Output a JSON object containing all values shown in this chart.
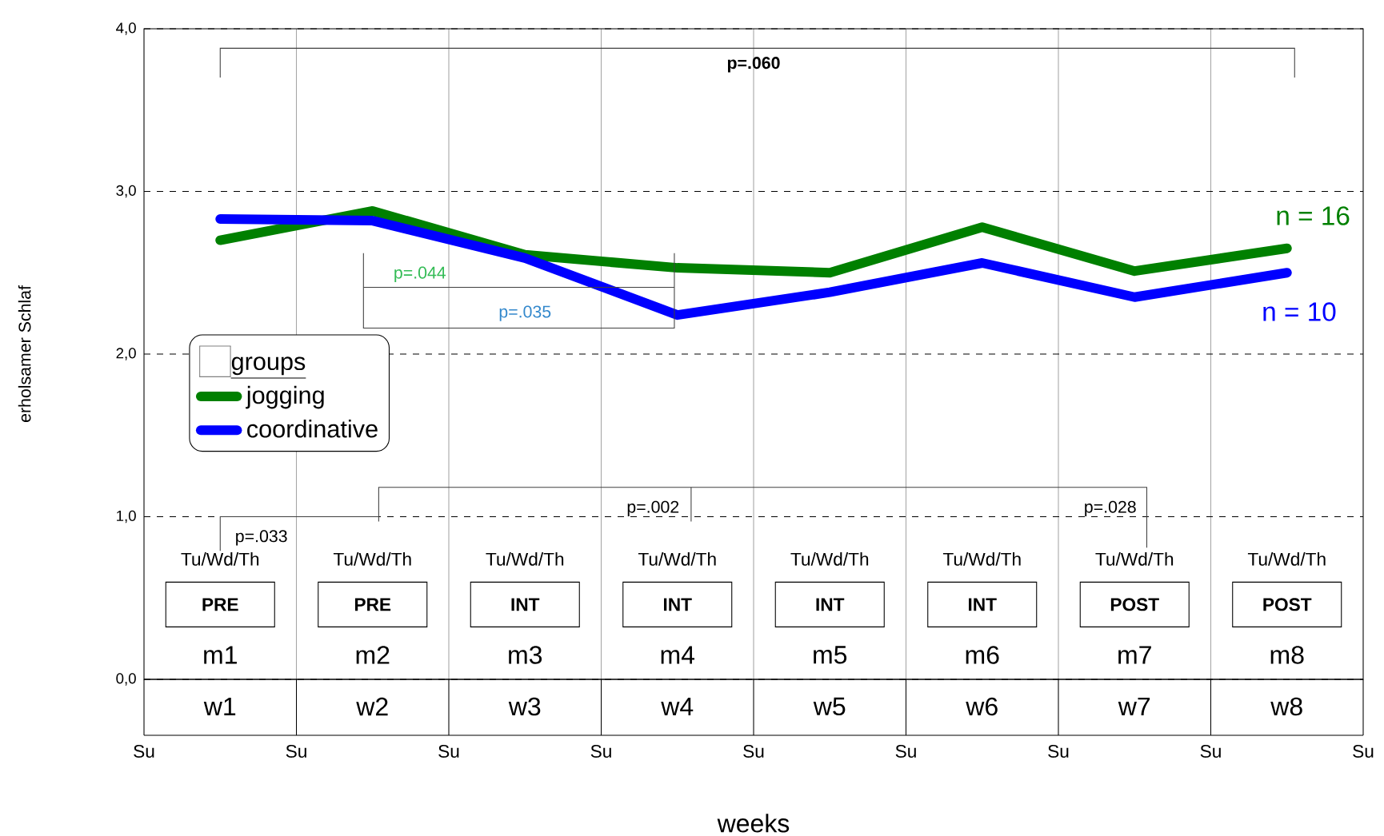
{
  "chart_data": {
    "type": "line",
    "xlabel": "weeks",
    "ylabel": "erholsamer Schlaf",
    "legend_title": "groups",
    "categories": [
      "w1",
      "w2",
      "w3",
      "w4",
      "w5",
      "w6",
      "w7",
      "w8"
    ],
    "series": [
      {
        "name": "jogging",
        "color": "#008000",
        "values": [
          2.7,
          2.88,
          2.61,
          2.53,
          2.5,
          2.78,
          2.51,
          2.65
        ]
      },
      {
        "name": "coordinative",
        "color": "#0000ff",
        "values": [
          2.83,
          2.82,
          2.59,
          2.24,
          2.38,
          2.56,
          2.35,
          2.5
        ]
      }
    ],
    "ylim": [
      0,
      4
    ],
    "yticks": [
      {
        "value": 0,
        "label": "0,0"
      },
      {
        "value": 1,
        "label": "1,0"
      },
      {
        "value": 2,
        "label": "2,0"
      },
      {
        "value": 3,
        "label": "3,0"
      },
      {
        "value": 4,
        "label": "4,0"
      }
    ],
    "grid": true,
    "legend": "left",
    "marker": "none",
    "line_style": "solid",
    "annotations": [
      "p=.060",
      "p=.044",
      "p=.035",
      "p=.002",
      "p=.028",
      "p=.033",
      "n = 16",
      "n = 10",
      "Tu/Wd/Th",
      "Tu/Wd/Th",
      "Tu/Wd/Th",
      "Tu/Wd/Th",
      "Tu/Wd/Th",
      "Tu/Wd/Th",
      "Tu/Wd/Th",
      "Tu/Wd/Th",
      "PRE",
      "PRE",
      "INT",
      "INT",
      "INT",
      "INT",
      "POST",
      "POST",
      "m1",
      "m2",
      "m3",
      "m4",
      "m5",
      "m6",
      "m7",
      "m8",
      "Su",
      "Su",
      "Su",
      "Su",
      "Su",
      "Su",
      "Su",
      "Su",
      "Su"
    ]
  }
}
